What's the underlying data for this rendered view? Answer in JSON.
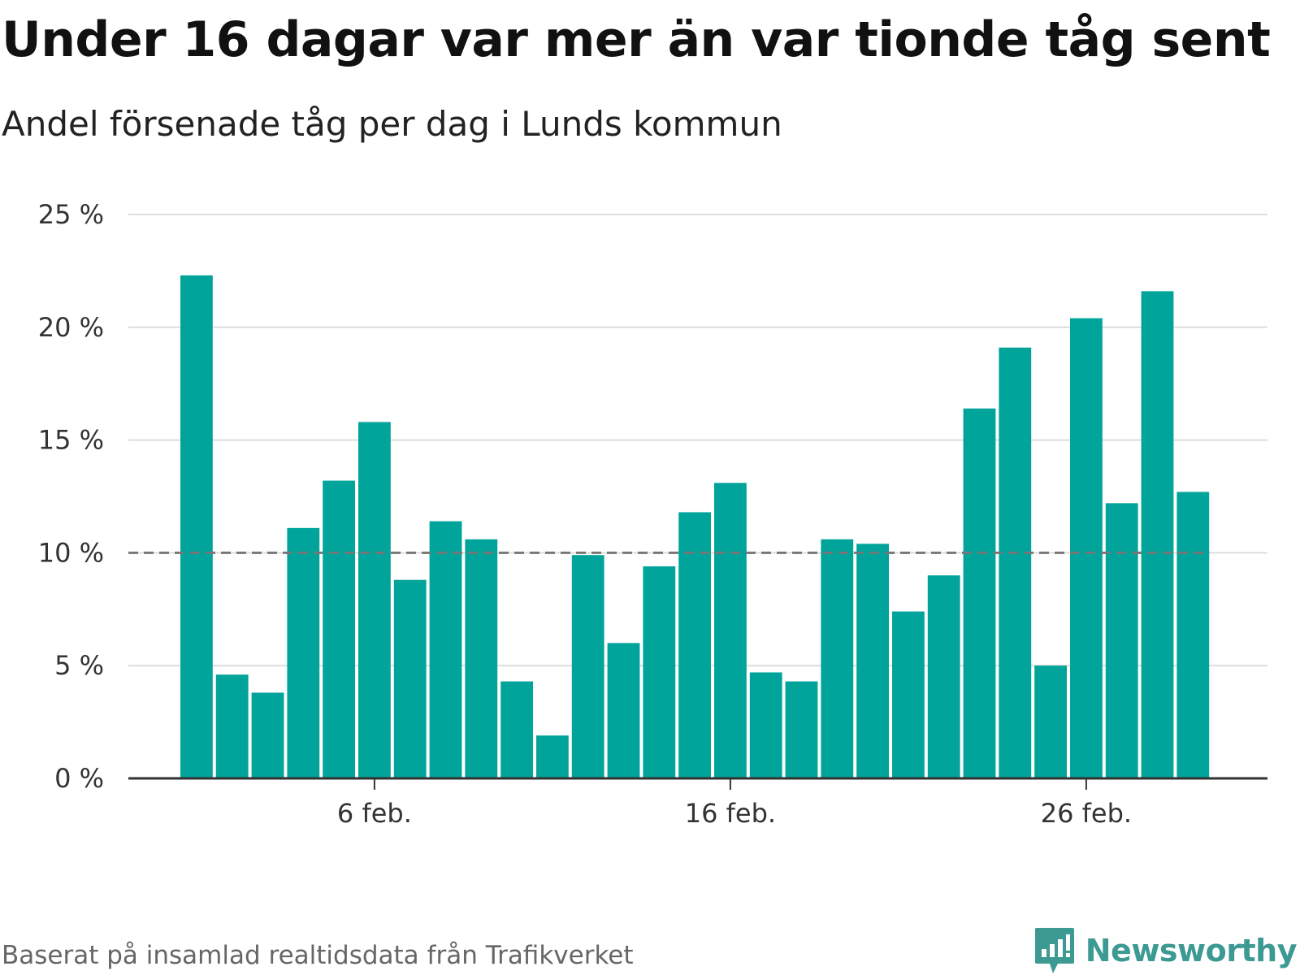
{
  "title": "Under 16 dagar var mer än var tionde tåg sent",
  "subtitle": "Andel försenade tåg per dag i Lunds kommun",
  "footer": {
    "source": "Baserat på insamlad realtidsdata från Trafikverket",
    "brand": "Newsworthy"
  },
  "colors": {
    "bar": "#00a49a",
    "reference_line": "#777777",
    "grid": "#dddddd",
    "axis": "#333333",
    "brand": "#3c9a93"
  },
  "chart_data": {
    "type": "bar",
    "x_start": "1 feb.",
    "categories": [
      "1 feb.",
      "2 feb.",
      "3 feb.",
      "4 feb.",
      "5 feb.",
      "6 feb.",
      "7 feb.",
      "8 feb.",
      "9 feb.",
      "10 feb.",
      "11 feb.",
      "12 feb.",
      "13 feb.",
      "14 feb.",
      "15 feb.",
      "16 feb.",
      "17 feb.",
      "18 feb.",
      "19 feb.",
      "20 feb.",
      "21 feb.",
      "22 feb.",
      "23 feb.",
      "24 feb.",
      "25 feb.",
      "26 feb.",
      "27 feb.",
      "28 feb.",
      "29 feb."
    ],
    "values": [
      22.3,
      4.6,
      3.8,
      11.1,
      13.2,
      15.8,
      8.8,
      11.4,
      10.6,
      4.3,
      1.9,
      9.9,
      6.0,
      9.4,
      11.8,
      13.1,
      4.7,
      4.3,
      10.6,
      10.4,
      7.4,
      9.0,
      16.4,
      19.1,
      5.0,
      20.4,
      12.2,
      21.6,
      12.7
    ],
    "x_ticks": [
      {
        "index": 5,
        "label": "6 feb."
      },
      {
        "index": 15,
        "label": "16 feb."
      },
      {
        "index": 25,
        "label": "26 feb."
      }
    ],
    "y_ticks": [
      0,
      5,
      10,
      15,
      20,
      25
    ],
    "y_tick_labels": [
      "0 %",
      "5 %",
      "10 %",
      "15 %",
      "20 %",
      "25 %"
    ],
    "ylim": [
      0,
      25
    ],
    "reference_line": 10,
    "xlabel": "",
    "ylabel": "",
    "grid": true,
    "legend": "none"
  }
}
